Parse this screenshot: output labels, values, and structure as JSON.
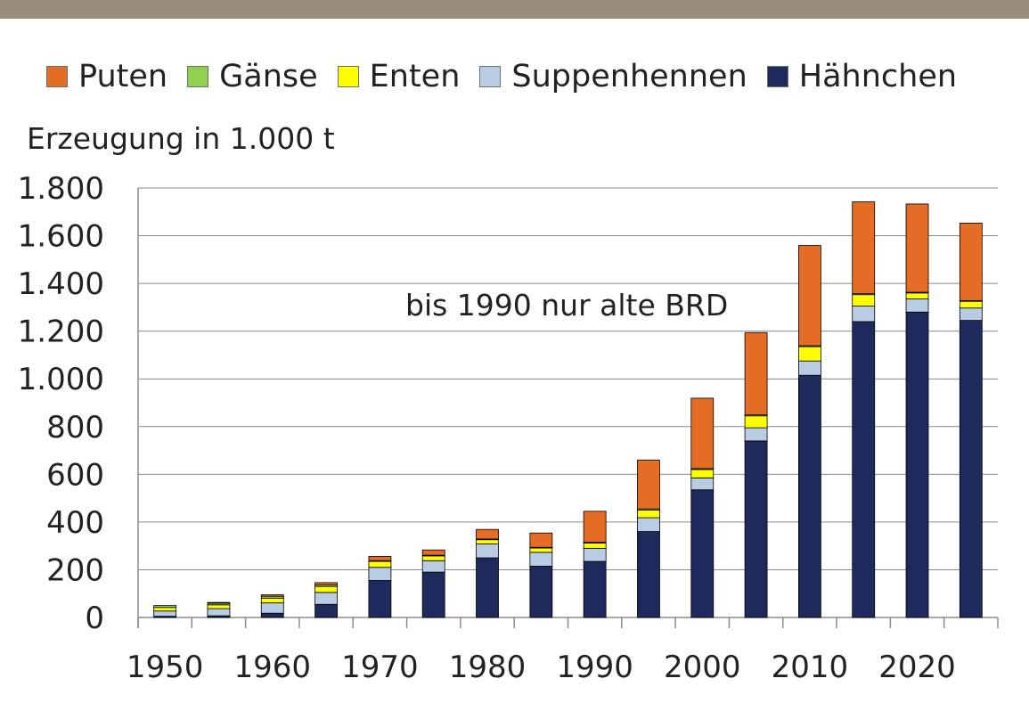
{
  "chart_data": {
    "type": "bar",
    "stacked": true,
    "title": "",
    "xlabel": "",
    "ylabel": "Erzeugung in 1.000 t",
    "ylim": [
      0,
      1800
    ],
    "yticks": [
      0,
      200,
      400,
      600,
      800,
      1000,
      1200,
      1400,
      1600,
      1800
    ],
    "ytick_labels": [
      "0",
      "200",
      "400",
      "600",
      "800",
      "1.000",
      "1.200",
      "1.400",
      "1.600",
      "1.800"
    ],
    "xtick_labels": [
      "1950",
      "1960",
      "1970",
      "1980",
      "1990",
      "2000",
      "2010",
      "2020"
    ],
    "categories": [
      1950,
      1955,
      1960,
      1965,
      1970,
      1975,
      1980,
      1985,
      1990,
      1995,
      2000,
      2005,
      2010,
      2015,
      2020,
      2024
    ],
    "grid": true,
    "legend_position": "top",
    "annotation": "bis 1990 nur alte BRD",
    "series": [
      {
        "name": "Hähnchen",
        "color": "#1f2a5c",
        "values": [
          5,
          7,
          18,
          55,
          155,
          190,
          250,
          215,
          235,
          360,
          535,
          740,
          1015,
          1240,
          1280,
          1245
        ]
      },
      {
        "name": "Suppenhennen",
        "color": "#b8cce4",
        "values": [
          22,
          30,
          43,
          50,
          55,
          48,
          58,
          58,
          55,
          58,
          50,
          55,
          60,
          65,
          55,
          52
        ]
      },
      {
        "name": "Enten",
        "color": "#ffff00",
        "values": [
          15,
          16,
          20,
          25,
          25,
          20,
          18,
          18,
          22,
          32,
          35,
          50,
          60,
          48,
          25,
          28
        ]
      },
      {
        "name": "Gänse",
        "color": "#92d050",
        "values": [
          8,
          7,
          8,
          6,
          3,
          3,
          3,
          3,
          3,
          5,
          4,
          4,
          4,
          4,
          3,
          3
        ]
      },
      {
        "name": "Puten",
        "color": "#e46c24",
        "values": [
          0,
          3,
          6,
          10,
          18,
          22,
          40,
          60,
          130,
          205,
          295,
          345,
          420,
          385,
          370,
          325
        ]
      }
    ],
    "legend_order": [
      "Puten",
      "Gänse",
      "Enten",
      "Suppenhennen",
      "Hähnchen"
    ]
  }
}
